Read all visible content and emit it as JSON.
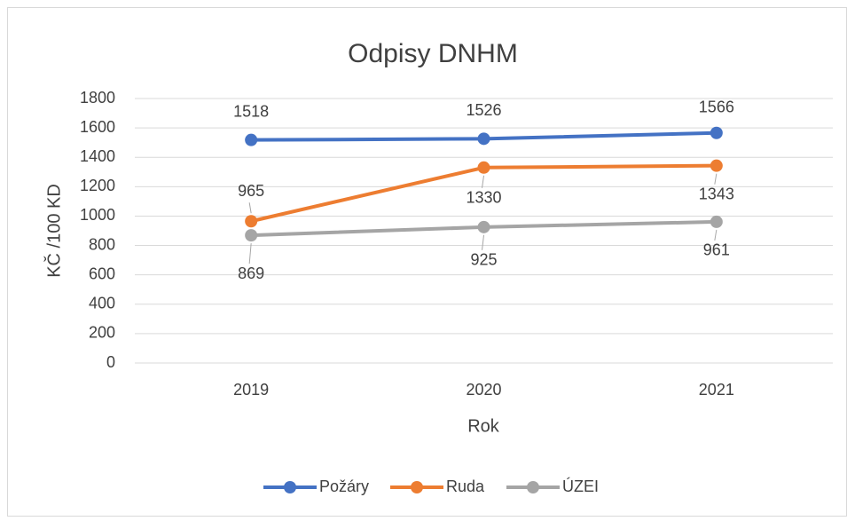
{
  "chart_data": {
    "type": "line",
    "title": "Odpisy DNHM",
    "x_label": "Rok",
    "y_label": "KČ /100 KD",
    "categories": [
      "2019",
      "2020",
      "2021"
    ],
    "series": [
      {
        "name": "Požáry",
        "color": "#4472c4",
        "values": [
          1518,
          1526,
          1566
        ]
      },
      {
        "name": "Ruda",
        "color": "#ed7d31",
        "values": [
          965,
          1330,
          1343
        ]
      },
      {
        "name": "ÚZEI",
        "color": "#a5a5a5",
        "values": [
          869,
          925,
          961
        ]
      }
    ],
    "ylim": [
      0,
      1800
    ],
    "yticks": [
      0,
      200,
      400,
      600,
      800,
      1000,
      1200,
      1400,
      1600,
      1800
    ],
    "grid": true,
    "legend": "bottom"
  }
}
